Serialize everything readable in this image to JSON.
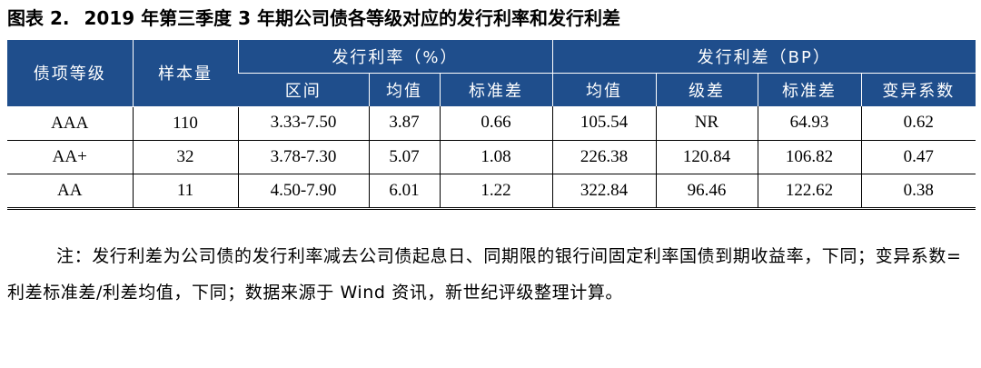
{
  "title": {
    "label": "图表 2.",
    "text": "2019 年第三季度 3 年期公司债各等级对应的发行利率和发行利差"
  },
  "table": {
    "header_top": {
      "grade": "债项等级",
      "sample": "样本量",
      "rate_group": "发行利率（%）",
      "spread_group": "发行利差（BP）"
    },
    "header_sub": {
      "rate_range": "区间",
      "rate_mean": "均值",
      "rate_std": "标准差",
      "spread_mean": "均值",
      "spread_diff": "级差",
      "spread_std": "标准差",
      "spread_cv": "变异系数"
    },
    "rows": [
      [
        "AAA",
        "110",
        "3.33-7.50",
        "3.87",
        "0.66",
        "105.54",
        "NR",
        "64.93",
        "0.62"
      ],
      [
        "AA+",
        "32",
        "3.78-7.30",
        "5.07",
        "1.08",
        "226.38",
        "120.84",
        "106.82",
        "0.47"
      ],
      [
        "AA",
        "11",
        "4.50-7.90",
        "6.01",
        "1.22",
        "322.84",
        "96.46",
        "122.62",
        "0.38"
      ]
    ]
  },
  "note": "注：发行利差为公司债的发行利率减去公司债起息日、同期限的银行间固定利率国债到期收益率，下同；变异系数=利差标准差/利差均值，下同；数据来源于 Wind 资讯，新世纪评级整理计算。",
  "colors": {
    "header_bg": "#1f4e8c",
    "header_text": "#ffffff"
  }
}
